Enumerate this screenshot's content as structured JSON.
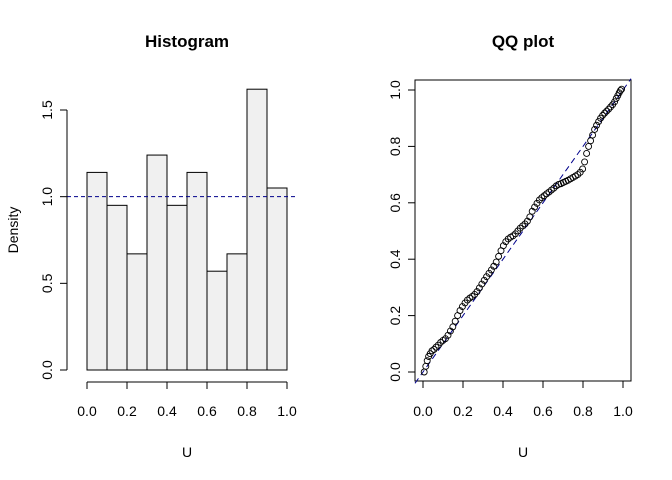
{
  "chart_data": [
    {
      "type": "bar",
      "title": "Histogram",
      "xlabel": "U",
      "ylabel": "Density",
      "bin_edges": [
        0.0,
        0.1,
        0.2,
        0.3,
        0.4,
        0.5,
        0.6,
        0.7,
        0.8,
        0.9,
        1.0
      ],
      "values": [
        1.14,
        0.95,
        0.67,
        1.24,
        0.95,
        1.14,
        0.57,
        0.67,
        1.62,
        1.05
      ],
      "reference_line": {
        "y": 1.0,
        "style": "dashed",
        "color": "#00008b"
      },
      "xlim": [
        0,
        1
      ],
      "ylim": [
        0,
        1.7
      ],
      "xticks": [
        "0.0",
        "0.2",
        "0.4",
        "0.6",
        "0.8",
        "1.0"
      ],
      "yticks": [
        "0.0",
        "0.5",
        "1.0",
        "1.5"
      ],
      "bar_fill": "#f0f0f0",
      "grid": false
    },
    {
      "type": "scatter",
      "title": "QQ plot",
      "xlabel": "U",
      "ylabel": "",
      "series": [
        {
          "values": [
            [
              0.006,
              0.0
            ],
            [
              0.014,
              0.02
            ],
            [
              0.021,
              0.04
            ],
            [
              0.028,
              0.055
            ],
            [
              0.036,
              0.065
            ],
            [
              0.045,
              0.075
            ],
            [
              0.055,
              0.08
            ],
            [
              0.065,
              0.088
            ],
            [
              0.076,
              0.095
            ],
            [
              0.088,
              0.105
            ],
            [
              0.1,
              0.112
            ],
            [
              0.112,
              0.118
            ],
            [
              0.125,
              0.13
            ],
            [
              0.137,
              0.145
            ],
            [
              0.149,
              0.16
            ],
            [
              0.161,
              0.18
            ],
            [
              0.173,
              0.2
            ],
            [
              0.185,
              0.218
            ],
            [
              0.197,
              0.232
            ],
            [
              0.21,
              0.245
            ],
            [
              0.222,
              0.255
            ],
            [
              0.234,
              0.262
            ],
            [
              0.246,
              0.268
            ],
            [
              0.258,
              0.275
            ],
            [
              0.27,
              0.285
            ],
            [
              0.282,
              0.298
            ],
            [
              0.294,
              0.312
            ],
            [
              0.306,
              0.325
            ],
            [
              0.318,
              0.338
            ],
            [
              0.33,
              0.35
            ],
            [
              0.342,
              0.362
            ],
            [
              0.354,
              0.375
            ],
            [
              0.366,
              0.39
            ],
            [
              0.378,
              0.41
            ],
            [
              0.39,
              0.43
            ],
            [
              0.402,
              0.448
            ],
            [
              0.414,
              0.462
            ],
            [
              0.426,
              0.472
            ],
            [
              0.438,
              0.478
            ],
            [
              0.45,
              0.483
            ],
            [
              0.462,
              0.49
            ],
            [
              0.474,
              0.5
            ],
            [
              0.486,
              0.51
            ],
            [
              0.498,
              0.518
            ],
            [
              0.51,
              0.525
            ],
            [
              0.522,
              0.535
            ],
            [
              0.534,
              0.55
            ],
            [
              0.546,
              0.57
            ],
            [
              0.558,
              0.585
            ],
            [
              0.57,
              0.598
            ],
            [
              0.582,
              0.61
            ],
            [
              0.594,
              0.618
            ],
            [
              0.606,
              0.625
            ],
            [
              0.618,
              0.632
            ],
            [
              0.63,
              0.638
            ],
            [
              0.642,
              0.645
            ],
            [
              0.654,
              0.652
            ],
            [
              0.666,
              0.66
            ],
            [
              0.678,
              0.665
            ],
            [
              0.69,
              0.668
            ],
            [
              0.702,
              0.672
            ],
            [
              0.714,
              0.676
            ],
            [
              0.726,
              0.68
            ],
            [
              0.738,
              0.685
            ],
            [
              0.75,
              0.69
            ],
            [
              0.762,
              0.695
            ],
            [
              0.774,
              0.7
            ],
            [
              0.786,
              0.708
            ],
            [
              0.798,
              0.72
            ],
            [
              0.808,
              0.745
            ],
            [
              0.818,
              0.775
            ],
            [
              0.828,
              0.8
            ],
            [
              0.838,
              0.82
            ],
            [
              0.848,
              0.84
            ],
            [
              0.858,
              0.86
            ],
            [
              0.868,
              0.875
            ],
            [
              0.878,
              0.888
            ],
            [
              0.888,
              0.9
            ],
            [
              0.898,
              0.91
            ],
            [
              0.908,
              0.918
            ],
            [
              0.918,
              0.925
            ],
            [
              0.928,
              0.932
            ],
            [
              0.938,
              0.94
            ],
            [
              0.948,
              0.948
            ],
            [
              0.958,
              0.958
            ],
            [
              0.966,
              0.97
            ],
            [
              0.974,
              0.98
            ],
            [
              0.981,
              0.99
            ],
            [
              0.987,
              0.998
            ],
            [
              0.993,
              1.003
            ]
          ],
          "marker": "open-circle",
          "color": "#000000"
        }
      ],
      "reference_line": {
        "from": [
          0,
          0
        ],
        "to": [
          1,
          1
        ],
        "style": "dashed",
        "color": "#00008b"
      },
      "xlim": [
        -0.04,
        1.04
      ],
      "ylim": [
        -0.04,
        1.04
      ],
      "xticks": [
        "0.0",
        "0.2",
        "0.4",
        "0.6",
        "0.8",
        "1.0"
      ],
      "yticks": [
        "0.0",
        "0.2",
        "0.4",
        "0.6",
        "0.8",
        "1.0"
      ],
      "grid": false
    }
  ]
}
